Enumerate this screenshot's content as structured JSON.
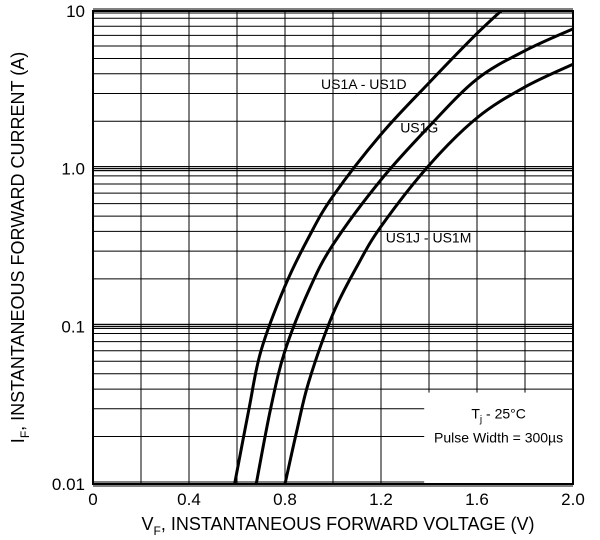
{
  "chart_data": {
    "type": "line",
    "title": "",
    "xlabel": {
      "main": "V",
      "sub": "F",
      "rest": ", INSTANTANEOUS FORWARD VOLTAGE (V)"
    },
    "ylabel": {
      "main": "I",
      "sub": "F",
      "rest": ", INSTANTANEOUS FORWARD CURRENT (A)"
    },
    "xlim": [
      0,
      2.0
    ],
    "ylim": [
      0.01,
      10
    ],
    "yscale": "log",
    "grid": true,
    "x_ticks": [
      {
        "value": 0,
        "label": "0"
      },
      {
        "value": 0.4,
        "label": "0.4"
      },
      {
        "value": 0.8,
        "label": "0.8"
      },
      {
        "value": 1.2,
        "label": "1.2"
      },
      {
        "value": 1.6,
        "label": "1.6"
      },
      {
        "value": 2.0,
        "label": "2.0"
      }
    ],
    "y_ticks": [
      {
        "value": 0.01,
        "label": "0.01"
      },
      {
        "value": 0.1,
        "label": "0.1"
      },
      {
        "value": 1,
        "label": "1.0"
      },
      {
        "value": 10,
        "label": "10"
      }
    ],
    "series": [
      {
        "name": "US1A - US1D",
        "points": [
          [
            0.59,
            0.01
          ],
          [
            0.65,
            0.03
          ],
          [
            0.7,
            0.07
          ],
          [
            0.8,
            0.18
          ],
          [
            0.9,
            0.37
          ],
          [
            1.0,
            0.67
          ],
          [
            1.2,
            1.65
          ],
          [
            1.4,
            3.5
          ],
          [
            1.6,
            7.2
          ],
          [
            1.73,
            11.0
          ]
        ]
      },
      {
        "name": "US1G",
        "points": [
          [
            0.68,
            0.01
          ],
          [
            0.74,
            0.03
          ],
          [
            0.8,
            0.07
          ],
          [
            0.9,
            0.17
          ],
          [
            1.0,
            0.33
          ],
          [
            1.2,
            0.85
          ],
          [
            1.4,
            1.85
          ],
          [
            1.6,
            3.7
          ],
          [
            1.8,
            5.6
          ],
          [
            2.0,
            7.7
          ]
        ]
      },
      {
        "name": "US1J - US1M",
        "points": [
          [
            0.8,
            0.01
          ],
          [
            0.85,
            0.022
          ],
          [
            0.9,
            0.045
          ],
          [
            1.0,
            0.12
          ],
          [
            1.1,
            0.24
          ],
          [
            1.2,
            0.43
          ],
          [
            1.4,
            1.05
          ],
          [
            1.6,
            2.1
          ],
          [
            1.8,
            3.3
          ],
          [
            2.0,
            4.6
          ]
        ]
      }
    ],
    "annotation": {
      "line1_main": "T",
      "line1_sub": "j",
      "line1_rest": " - 25°C",
      "line2": "Pulse Width = 300µs"
    }
  }
}
